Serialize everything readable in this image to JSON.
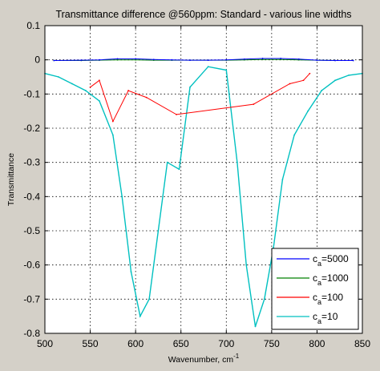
{
  "chart_data": {
    "type": "line",
    "title": "Transmittance difference @560ppm: Standard - various line widths",
    "xlabel": "Wavenumber, cm",
    "xlabel_superscript": "-1",
    "ylabel": "Transmittance",
    "xlim": [
      500,
      850
    ],
    "ylim": [
      -0.8,
      0.1
    ],
    "grid": true,
    "legend_position": "bottom-right",
    "x_ticks": [
      "500",
      "550",
      "600",
      "650",
      "700",
      "750",
      "800",
      "850"
    ],
    "y_ticks": [
      "0.1",
      "0",
      "-0.1",
      "-0.2",
      "-0.3",
      "-0.4",
      "-0.5",
      "-0.6",
      "-0.7",
      "-0.8"
    ],
    "series": [
      {
        "name": "c",
        "subscript": "a",
        "suffix": "=5000",
        "color": "#0000ff",
        "x": [
          510,
          540,
          560,
          580,
          600,
          620,
          640,
          660,
          680,
          700,
          720,
          740,
          760,
          780,
          800,
          820,
          840
        ],
        "y": [
          -0.002,
          -0.001,
          0.0,
          0.003,
          0.003,
          0.001,
          0.0,
          -0.001,
          -0.001,
          0.0,
          0.002,
          0.004,
          0.004,
          0.002,
          -0.001,
          -0.002,
          -0.002
        ]
      },
      {
        "name": "c",
        "subscript": "a",
        "suffix": "=1000",
        "color": "#008000",
        "x": [
          510,
          540,
          560,
          580,
          600,
          620,
          640,
          660,
          680,
          700,
          720,
          740,
          760,
          780,
          800,
          820,
          840
        ],
        "y": [
          -0.002,
          -0.002,
          -0.001,
          0.0,
          0.0,
          -0.001,
          -0.001,
          -0.001,
          -0.001,
          -0.001,
          0.0,
          0.001,
          0.001,
          0.0,
          -0.001,
          -0.002,
          -0.002
        ]
      },
      {
        "name": "c",
        "subscript": "a",
        "suffix": "=100",
        "color": "#ff0000",
        "x": [
          550,
          560,
          575,
          592,
          612,
          645,
          730,
          770,
          785,
          792
        ],
        "y": [
          -0.08,
          -0.06,
          -0.18,
          -0.09,
          -0.11,
          -0.16,
          -0.13,
          -0.07,
          -0.06,
          -0.04
        ]
      },
      {
        "name": "c",
        "subscript": "a",
        "suffix": "=10",
        "color": "#00c0c0",
        "x": [
          500,
          515,
          530,
          545,
          560,
          575,
          585,
          595,
          605,
          615,
          625,
          635,
          648,
          660,
          680,
          700,
          712,
          722,
          732,
          742,
          752,
          762,
          775,
          790,
          805,
          820,
          835,
          850
        ],
        "y": [
          -0.04,
          -0.05,
          -0.07,
          -0.09,
          -0.12,
          -0.22,
          -0.4,
          -0.62,
          -0.75,
          -0.7,
          -0.5,
          -0.3,
          -0.32,
          -0.08,
          -0.02,
          -0.03,
          -0.3,
          -0.6,
          -0.78,
          -0.7,
          -0.55,
          -0.35,
          -0.22,
          -0.15,
          -0.09,
          -0.06,
          -0.045,
          -0.04
        ]
      }
    ]
  }
}
